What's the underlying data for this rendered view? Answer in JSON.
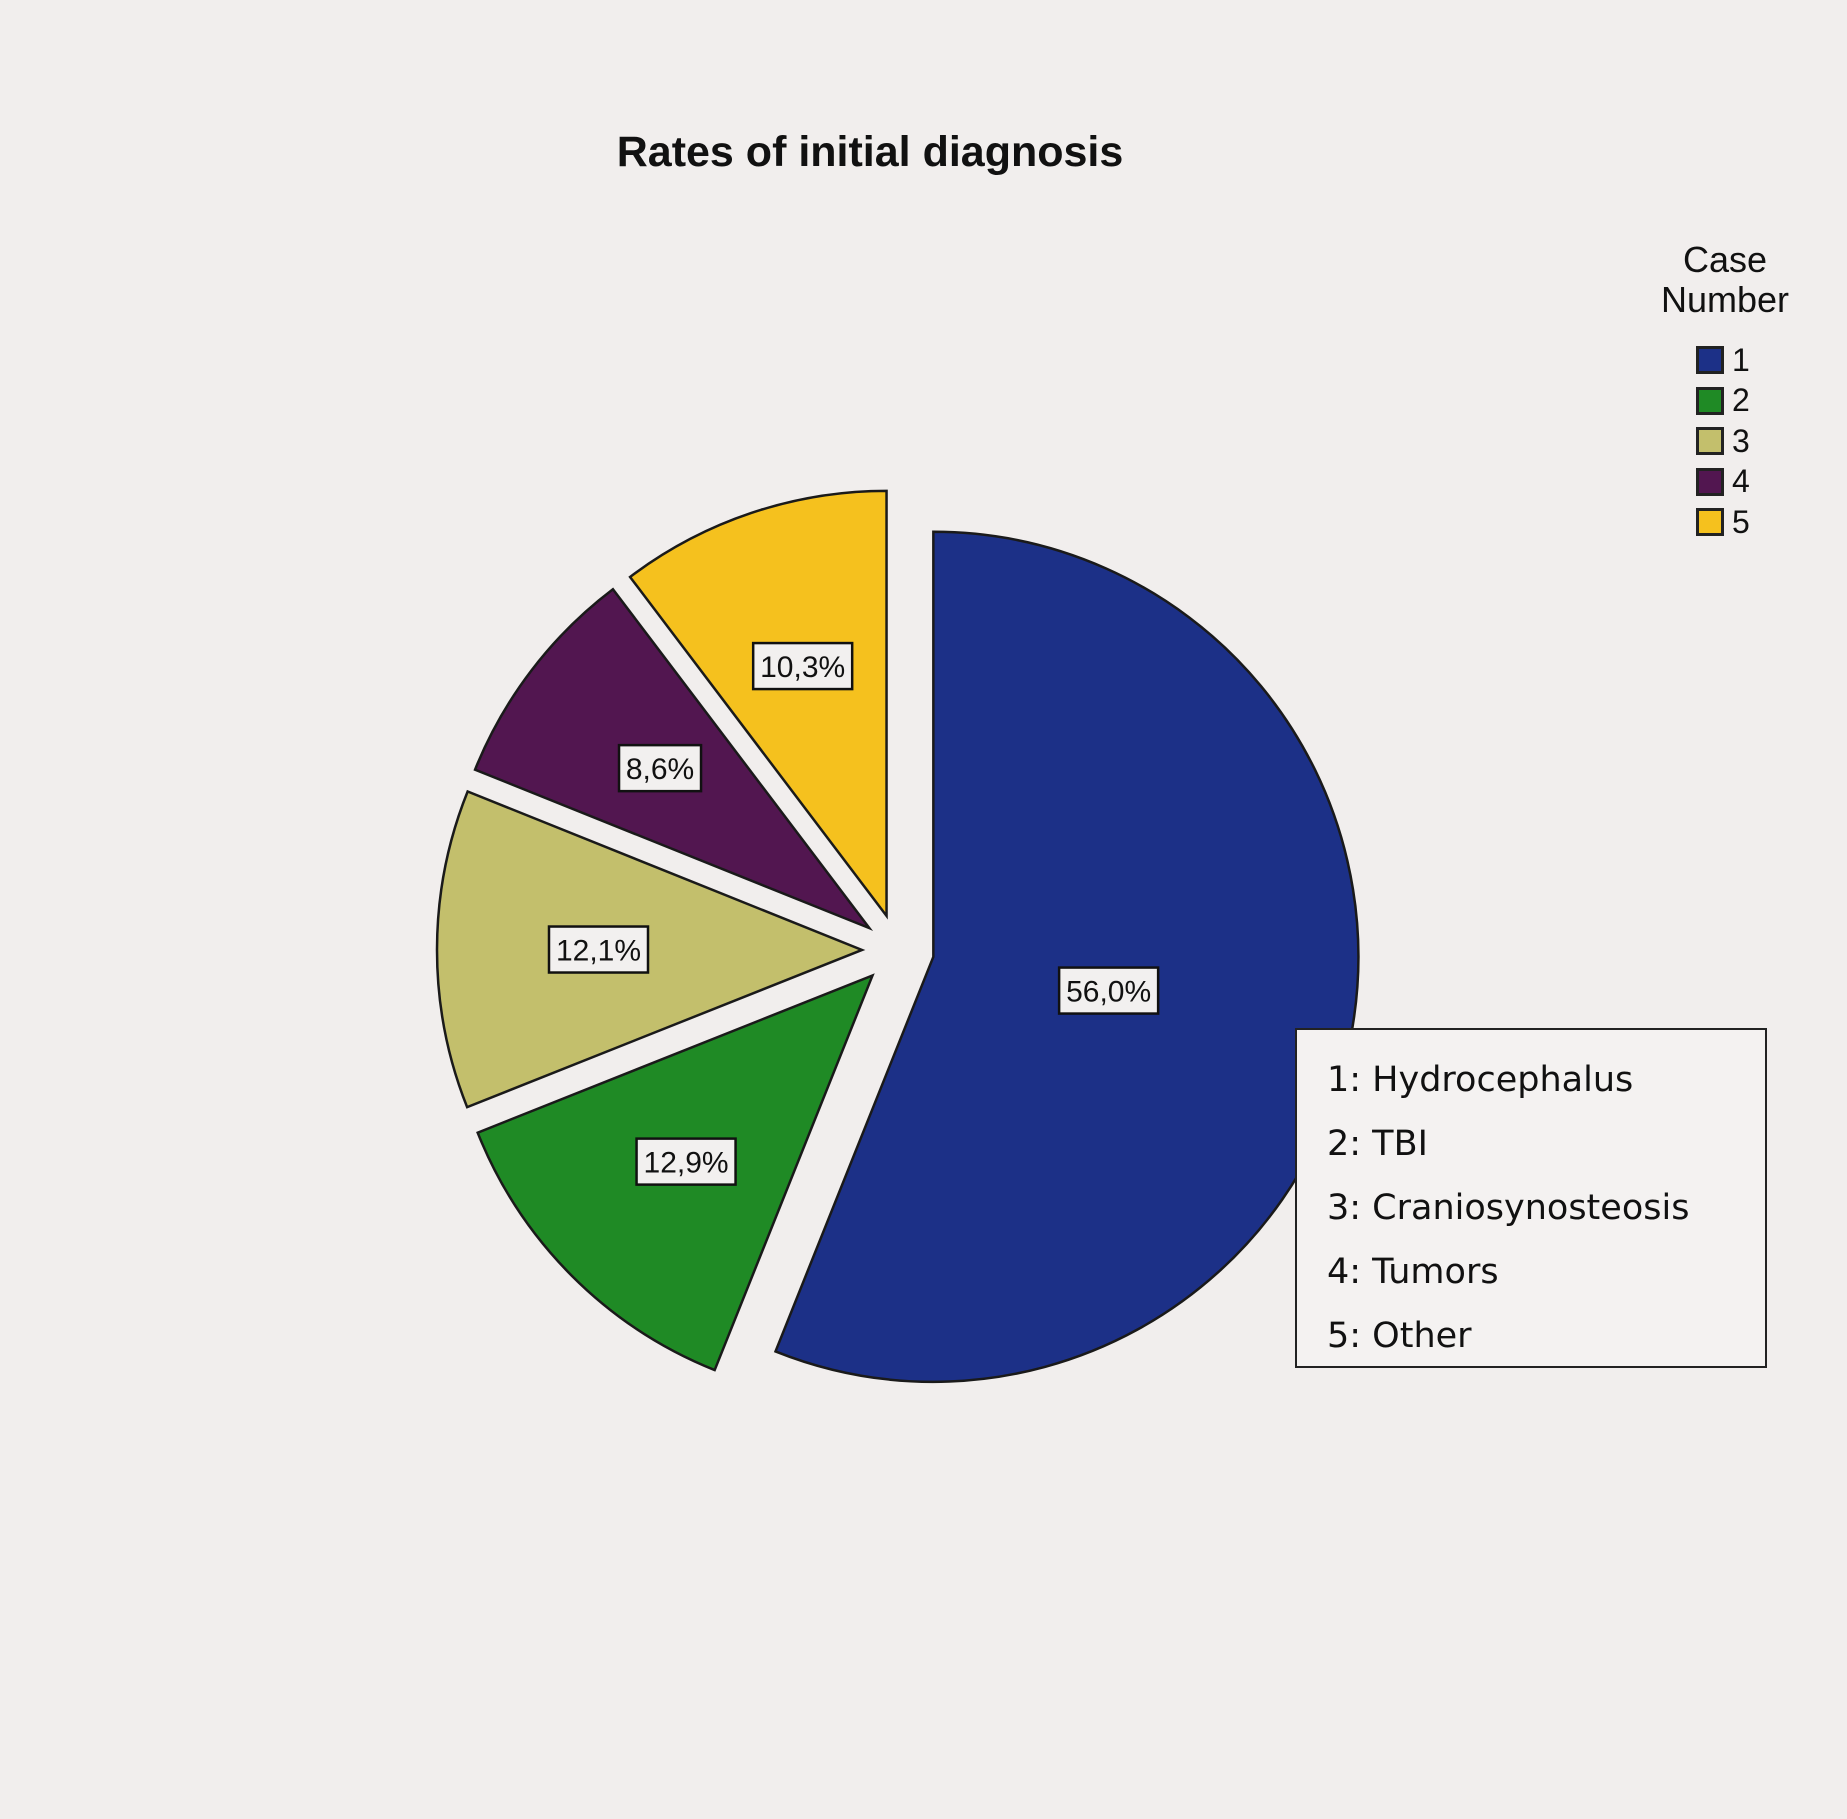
{
  "chart_data": {
    "type": "pie",
    "title": "Rates of initial diagnosis",
    "legend_title": "Case Number",
    "legend_placement": "top-right",
    "slices": [
      {
        "category": "1",
        "value": 56.0,
        "label": "56,0%",
        "color": "#1c3087"
      },
      {
        "category": "2",
        "value": 12.9,
        "label": "12,9%",
        "color": "#1f8a25"
      },
      {
        "category": "3",
        "value": 12.1,
        "label": "12,1%",
        "color": "#c3bf6c"
      },
      {
        "category": "4",
        "value": 8.6,
        "label": "8,6%",
        "color": "#521650"
      },
      {
        "category": "5",
        "value": 10.3,
        "label": "10,3%",
        "color": "#f5c11e"
      }
    ],
    "key": [
      "1: Hydrocephalus",
      "2: TBI",
      "3: Craniosynosteosis",
      "4: Tumors",
      "5: Other"
    ]
  }
}
